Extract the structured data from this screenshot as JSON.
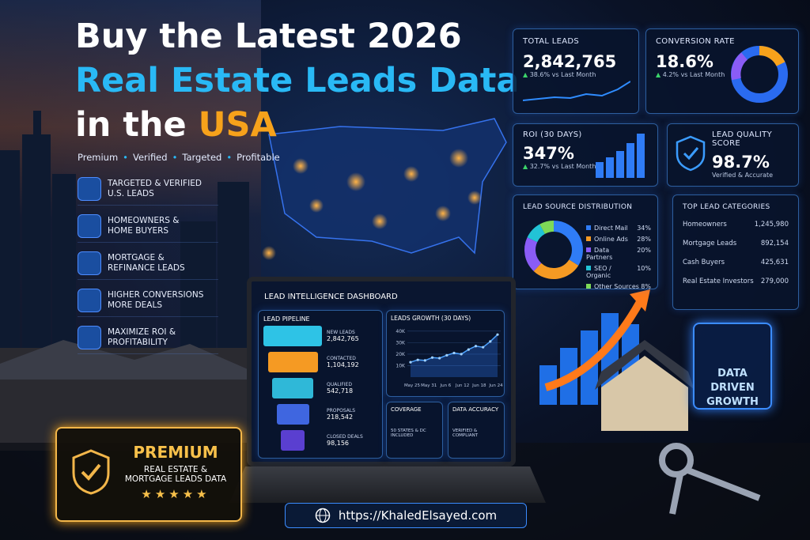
{
  "hero": {
    "title_line1": "Buy the Latest 2026",
    "title_line2": "Real Estate Leads Data",
    "title_line3": "in the",
    "title_highlight": "USA",
    "tags": [
      "Premium",
      "Verified",
      "Targeted",
      "Profitable"
    ]
  },
  "features": [
    {
      "line1": "TARGETED & VERIFIED",
      "line2": "U.S. LEADS"
    },
    {
      "line1": "HOMEOWNERS &",
      "line2": "HOME BUYERS"
    },
    {
      "line1": "MORTGAGE &",
      "line2": "REFINANCE LEADS"
    },
    {
      "line1": "HIGHER CONVERSIONS",
      "line2": "MORE DEALS"
    },
    {
      "line1": "MAXIMIZE ROI &",
      "line2": "PROFITABILITY"
    }
  ],
  "stats": {
    "total_leads": {
      "label": "TOTAL LEADS",
      "value": "2,842,765",
      "change": "38.6% vs Last Month"
    },
    "conversion_rate": {
      "label": "CONVERSION RATE",
      "value": "18.6%",
      "change": "4.2% vs Last Month"
    },
    "roi": {
      "label": "ROI (30 DAYS)",
      "value": "347%",
      "change": "32.7% vs Last Month"
    },
    "quality": {
      "label": "LEAD QUALITY SCORE",
      "value": "98.7%",
      "note": "Verified & Accurate"
    }
  },
  "lead_sources": {
    "title": "LEAD SOURCE DISTRIBUTION",
    "items": [
      {
        "name": "Direct Mail",
        "value": 34,
        "value_label": "34%",
        "color": "#2f7cf6"
      },
      {
        "name": "Online Ads",
        "value": 28,
        "value_label": "28%",
        "color": "#f59a23"
      },
      {
        "name": "Data Partners",
        "value": 20,
        "value_label": "20%",
        "color": "#8a5cf6"
      },
      {
        "name": "SEO / Organic",
        "value": 10,
        "value_label": "10%",
        "color": "#22c3d6"
      },
      {
        "name": "Other Sources",
        "value": 8,
        "value_label": "8%",
        "color": "#7ed957"
      }
    ]
  },
  "top_categories": {
    "title": "TOP LEAD CATEGORIES",
    "items": [
      {
        "name": "Homeowners",
        "count": "1,245,980"
      },
      {
        "name": "Mortgage Leads",
        "count": "892,154"
      },
      {
        "name": "Cash Buyers",
        "count": "425,631"
      },
      {
        "name": "Real Estate Investors",
        "count": "279,000"
      }
    ]
  },
  "dashboard": {
    "title": "LEAD INTELLIGENCE DASHBOARD",
    "pipeline": {
      "title": "LEAD PIPELINE",
      "stages": [
        {
          "name": "NEW LEADS",
          "count": "2,842,765"
        },
        {
          "name": "CONTACTED",
          "count": "1,104,192"
        },
        {
          "name": "QUALIFIED",
          "count": "542,718"
        },
        {
          "name": "PROPOSALS",
          "count": "218,542"
        },
        {
          "name": "CLOSED DEALS",
          "count": "98,156"
        }
      ]
    },
    "growth": {
      "title": "LEADS GROWTH (30 DAYS)",
      "ylim": [
        0,
        44000
      ],
      "yticks": [
        {
          "value": 10000,
          "label": "10K"
        },
        {
          "value": 20000,
          "label": "20K"
        },
        {
          "value": 30000,
          "label": "30K"
        },
        {
          "value": 40000,
          "label": "40K"
        }
      ],
      "x_labels": [
        "May 25",
        "May 31",
        "Jun 6",
        "Jun 12",
        "Jun 18",
        "Jun 24"
      ],
      "values": [
        13000,
        15000,
        14500,
        17000,
        16500,
        19000,
        21000,
        20000,
        24000,
        27000,
        26000,
        31000,
        37000
      ]
    },
    "coverage": {
      "title": "COVERAGE",
      "note": "50 STATES & DC INCLUDED"
    },
    "accuracy": {
      "title": "DATA ACCURACY",
      "note": "VERIFIED & COMPLIANT"
    }
  },
  "growth_badge": {
    "line1": "DATA DRIVEN",
    "line2": "GROWTH"
  },
  "premium_badge": {
    "title": "PREMIUM",
    "line1": "REAL ESTATE &",
    "line2": "MORTGAGE LEADS DATA"
  },
  "url": "https://KhaledElsayed.com"
}
